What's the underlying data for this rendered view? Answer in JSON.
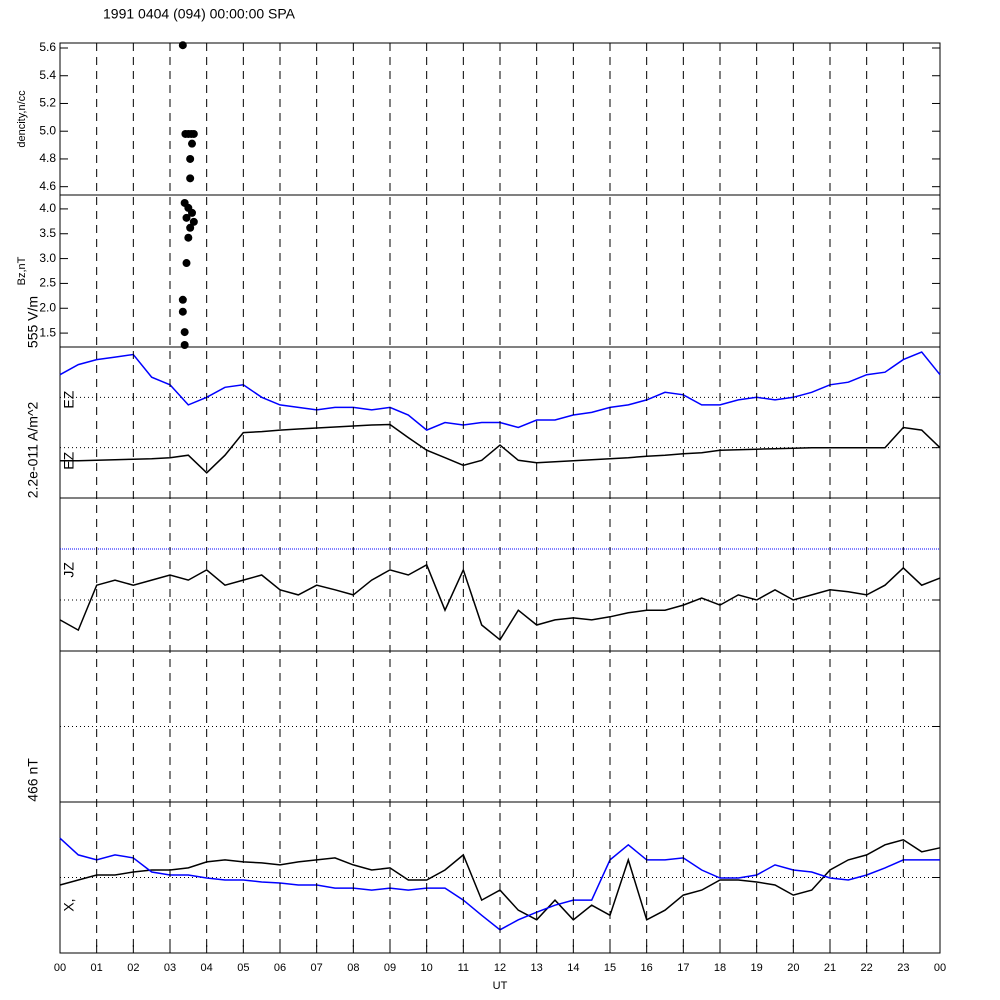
{
  "title": "1991 0404 (094) 00:00:00 SPA",
  "chart_data": [
    {
      "type": "scatter",
      "ylabel": "dencity,n/cc",
      "xlim": [
        0,
        24
      ],
      "ylim": [
        4.54,
        5.636
      ],
      "yticks": [
        4.6,
        4.8,
        {
          "value": 5,
          "label": "5.0"
        },
        5.2,
        5.4,
        5.6
      ],
      "x": [
        3.35,
        3.42,
        3.5,
        3.58,
        3.65,
        3.6,
        3.55,
        3.55
      ],
      "series": [
        {
          "color": "#000000",
          "values": [
            5.62,
            4.98,
            4.98,
            4.98,
            4.98,
            4.91,
            4.8,
            4.66
          ]
        }
      ]
    },
    {
      "type": "scatter",
      "ylabel": "Bz,nT",
      "xlim": [
        0,
        24
      ],
      "ylim": [
        1.22,
        4.28
      ],
      "yticks": [
        1.5,
        {
          "value": 2,
          "label": "2.0"
        },
        2.5,
        {
          "value": 3,
          "label": "3.0"
        },
        3.5,
        {
          "value": 4,
          "label": "4.0"
        }
      ],
      "x": [
        3.4,
        3.5,
        3.6,
        3.45,
        3.65,
        3.55,
        3.5,
        3.45,
        3.35,
        3.35,
        3.4,
        3.4
      ],
      "series": [
        {
          "color": "#000000",
          "values": [
            4.12,
            4.02,
            3.92,
            3.82,
            3.74,
            3.62,
            3.42,
            2.91,
            2.17,
            1.93,
            1.52,
            1.26
          ]
        }
      ]
    },
    {
      "type": "line",
      "ylabel": "555 V/m",
      "xlim": [
        0,
        24
      ],
      "ylim": [
        0,
        3
      ],
      "dotted_lines": [
        1,
        2
      ],
      "x": [
        0,
        0.5,
        1,
        1.5,
        2,
        2.5,
        3,
        3.5,
        4,
        4.5,
        5,
        5.5,
        6,
        6.5,
        7,
        7.5,
        8,
        8.5,
        9,
        9.5,
        10,
        10.5,
        11,
        11.5,
        12,
        12.5,
        13,
        13.5,
        14,
        14.5,
        15,
        15.5,
        16,
        16.5,
        17,
        17.5,
        18,
        18.5,
        19,
        19.5,
        20,
        20.5,
        21,
        21.5,
        22,
        22.5,
        23,
        23.5,
        24
      ],
      "series": [
        {
          "name": "EZ",
          "color": "#0000ff",
          "values": [
            2.45,
            2.65,
            2.75,
            2.8,
            2.85,
            2.4,
            2.25,
            1.85,
            2.0,
            2.2,
            2.25,
            2.0,
            1.85,
            1.8,
            1.75,
            1.8,
            1.8,
            1.75,
            1.8,
            1.65,
            1.35,
            1.5,
            1.45,
            1.5,
            1.5,
            1.4,
            1.55,
            1.55,
            1.65,
            1.7,
            1.8,
            1.85,
            1.95,
            2.1,
            2.05,
            1.85,
            1.85,
            1.95,
            2.0,
            1.95,
            2.0,
            2.1,
            2.25,
            2.3,
            2.45,
            2.5,
            2.75,
            2.9,
            2.45
          ]
        },
        {
          "name": "EZ",
          "color": "#000000",
          "values": [
            0.74,
            0.74,
            0.75,
            0.76,
            0.77,
            0.78,
            0.8,
            0.85,
            0.5,
            0.85,
            1.3,
            1.32,
            1.35,
            1.37,
            1.39,
            1.41,
            1.43,
            1.45,
            1.46,
            1.2,
            0.95,
            0.8,
            0.65,
            0.75,
            1.05,
            0.75,
            0.7,
            0.72,
            0.74,
            0.76,
            0.78,
            0.8,
            0.83,
            0.85,
            0.88,
            0.9,
            0.95,
            0.96,
            0.97,
            0.98,
            0.99,
            1.0,
            1.0,
            1.0,
            1.0,
            1.0,
            1.4,
            1.35,
            1.0
          ]
        }
      ]
    },
    {
      "type": "line",
      "ylabel": "2.2e-011 A/m^2",
      "xlim": [
        0,
        24
      ],
      "ylim": [
        0,
        3
      ],
      "dotted_lines": [
        1
      ],
      "blue_line": 2,
      "x": [
        0,
        0.5,
        1,
        1.5,
        2,
        2.5,
        3,
        3.5,
        4,
        4.5,
        5,
        5.5,
        6,
        6.5,
        7,
        7.5,
        8,
        8.5,
        9,
        9.5,
        10,
        10.5,
        11,
        11.5,
        12,
        12.5,
        13,
        13.5,
        14,
        14.5,
        15,
        15.5,
        16,
        16.5,
        17,
        17.5,
        18,
        18.5,
        19,
        19.5,
        20,
        20.5,
        21,
        21.5,
        22,
        22.5,
        23,
        23.5,
        24
      ],
      "series": [
        {
          "name": "JZ",
          "color": "#000000",
          "values": [
            0.61,
            0.41,
            1.29,
            1.39,
            1.29,
            1.39,
            1.49,
            1.39,
            1.59,
            1.29,
            1.39,
            1.49,
            1.2,
            1.1,
            1.29,
            1.2,
            1.1,
            1.39,
            1.59,
            1.49,
            1.69,
            0.8,
            1.59,
            0.51,
            0.22,
            0.8,
            0.51,
            0.61,
            0.65,
            0.61,
            0.67,
            0.75,
            0.8,
            0.8,
            0.9,
            1.04,
            0.9,
            1.1,
            1.0,
            1.2,
            1.0,
            1.1,
            1.2,
            1.16,
            1.1,
            1.29,
            1.63,
            1.29,
            1.43
          ]
        }
      ]
    },
    {
      "type": "line",
      "xlim": [
        0,
        24
      ],
      "ylim": [
        0,
        2
      ],
      "dotted_lines": [
        1
      ],
      "x": [],
      "series": []
    },
    {
      "type": "line",
      "ylabel": "466 nT",
      "xlabel": "UT",
      "xlim": [
        0,
        24
      ],
      "ylim": [
        0,
        3
      ],
      "dotted_lines": [
        1.5
      ],
      "xticks": [
        {
          "value": 0,
          "label": "00"
        },
        {
          "value": 1,
          "label": "01"
        },
        {
          "value": 2,
          "label": "02"
        },
        {
          "value": 3,
          "label": "03"
        },
        {
          "value": 4,
          "label": "04"
        },
        {
          "value": 5,
          "label": "05"
        },
        {
          "value": 6,
          "label": "06"
        },
        {
          "value": 7,
          "label": "07"
        },
        {
          "value": 8,
          "label": "08"
        },
        {
          "value": 9,
          "label": "09"
        },
        10,
        11,
        12,
        13,
        14,
        15,
        16,
        17,
        18,
        19,
        20,
        21,
        22,
        23,
        {
          "value": 24,
          "label": "00"
        }
      ],
      "x": [
        0,
        0.5,
        1,
        1.5,
        2,
        2.5,
        3,
        3.5,
        4,
        4.5,
        5,
        5.5,
        6,
        6.5,
        7,
        7.5,
        8,
        8.5,
        9,
        9.5,
        10,
        10.5,
        11,
        11.5,
        12,
        12.5,
        13,
        13.5,
        14,
        14.5,
        15,
        15.5,
        16,
        16.5,
        17,
        17.5,
        18,
        18.5,
        19,
        19.5,
        20,
        20.5,
        21,
        21.5,
        22,
        22.5,
        23,
        23.5,
        24
      ],
      "series": [
        {
          "name": "X,",
          "color": "#000000",
          "values": [
            1.35,
            1.45,
            1.55,
            1.55,
            1.61,
            1.65,
            1.65,
            1.69,
            1.81,
            1.85,
            1.81,
            1.79,
            1.75,
            1.81,
            1.85,
            1.89,
            1.75,
            1.65,
            1.69,
            1.45,
            1.45,
            1.65,
            1.95,
            1.05,
            1.25,
            0.85,
            0.66,
            1.05,
            0.66,
            0.95,
            0.75,
            1.85,
            0.66,
            0.85,
            1.15,
            1.25,
            1.45,
            1.45,
            1.41,
            1.35,
            1.15,
            1.25,
            1.65,
            1.85,
            1.95,
            2.15,
            2.25,
            2.01,
            2.09
          ]
        },
        {
          "color": "#0000ff",
          "values": [
            2.28,
            1.95,
            1.85,
            1.95,
            1.89,
            1.61,
            1.55,
            1.55,
            1.49,
            1.45,
            1.45,
            1.41,
            1.39,
            1.35,
            1.35,
            1.29,
            1.29,
            1.25,
            1.29,
            1.25,
            1.29,
            1.29,
            1.05,
            0.75,
            0.46,
            0.66,
            0.81,
            0.95,
            1.05,
            1.05,
            1.85,
            2.15,
            1.85,
            1.85,
            1.89,
            1.65,
            1.49,
            1.49,
            1.55,
            1.75,
            1.65,
            1.61,
            1.49,
            1.45,
            1.55,
            1.69,
            1.85,
            1.85,
            1.85
          ]
        }
      ]
    }
  ]
}
